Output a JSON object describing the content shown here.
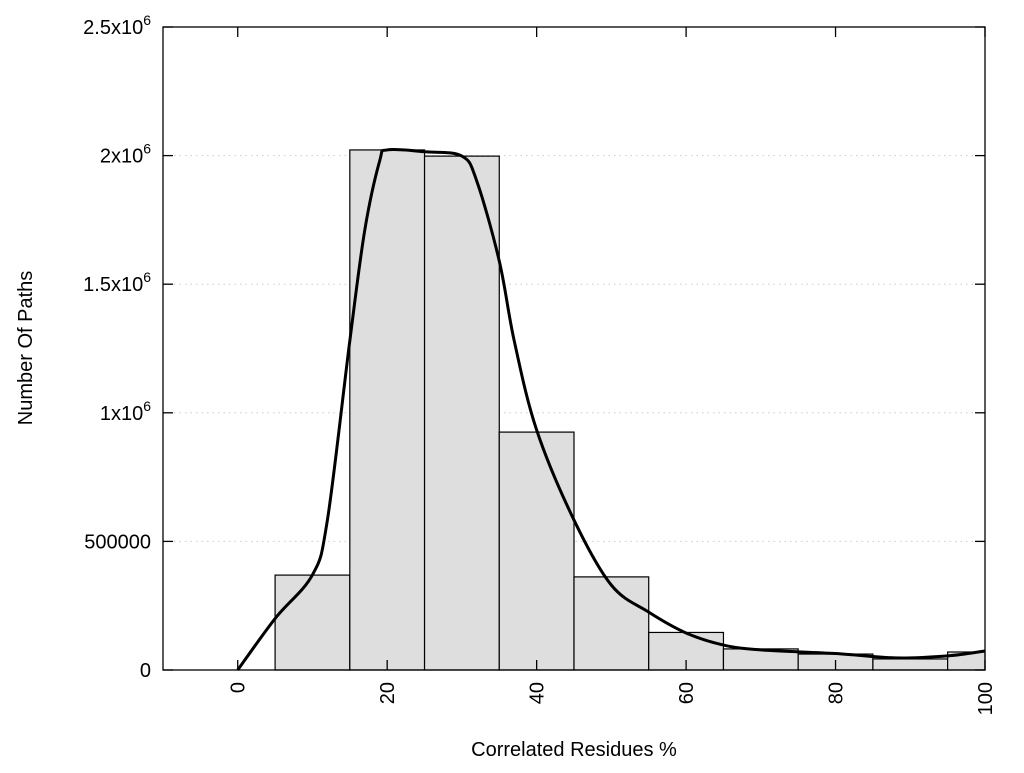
{
  "chart_data": {
    "type": "bar",
    "title": "",
    "xlabel": "Correlated Residues %",
    "ylabel": "Number Of Paths",
    "xlim": [
      -10,
      100
    ],
    "ylim": [
      0,
      2500000
    ],
    "grid": "horizontal dotted",
    "bar_width": 10,
    "colors": {
      "bar_fill": "#dedede",
      "bar_stroke": "#000000",
      "curve": "#000000",
      "grid": "#cccccc"
    },
    "x_ticks": [
      {
        "value": 0,
        "label": "0"
      },
      {
        "value": 20,
        "label": "20"
      },
      {
        "value": 40,
        "label": "40"
      },
      {
        "value": 60,
        "label": "60"
      },
      {
        "value": 80,
        "label": "80"
      },
      {
        "value": 100,
        "label": "100"
      }
    ],
    "y_ticks": [
      {
        "value": 0,
        "label": "0",
        "exp": ""
      },
      {
        "value": 500000,
        "label": "500000",
        "exp": ""
      },
      {
        "value": 1000000,
        "label": "1x10",
        "exp": "6"
      },
      {
        "value": 1500000,
        "label": "1.5x10",
        "exp": "6"
      },
      {
        "value": 2000000,
        "label": "2x10",
        "exp": "6"
      },
      {
        "value": 2500000,
        "label": "2.5x10",
        "exp": "6"
      }
    ],
    "bars": {
      "x": [
        10,
        20,
        30,
        40,
        50,
        60,
        70,
        80,
        90,
        100
      ],
      "values": [
        369000,
        2022000,
        1998000,
        925000,
        362000,
        146000,
        82000,
        62000,
        43000,
        70000
      ]
    },
    "curve": {
      "x": [
        0,
        5,
        10,
        12,
        15,
        17,
        19,
        20,
        25,
        30,
        32,
        35,
        37,
        40,
        45,
        50,
        55,
        60,
        65,
        70,
        80,
        88,
        95,
        100
      ],
      "y": [
        0,
        200000,
        370000,
        583000,
        1280000,
        1710000,
        1980000,
        2022000,
        2015000,
        1998000,
        1900000,
        1590000,
        1280000,
        933000,
        583000,
        330000,
        225000,
        144000,
        97000,
        78000,
        64000,
        47000,
        55000,
        74000
      ]
    }
  }
}
